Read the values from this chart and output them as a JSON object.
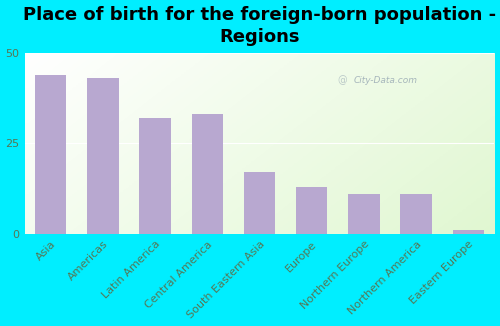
{
  "title": "Place of birth for the foreign-born population -\nRegions",
  "categories": [
    "Asia",
    "Americas",
    "Latin America",
    "Central America",
    "South Eastern Asia",
    "Europe",
    "Northern Europe",
    "Northern America",
    "Eastern Europe"
  ],
  "values": [
    44,
    43,
    32,
    33,
    17,
    13,
    11,
    11,
    1
  ],
  "bar_color": "#b8a8d0",
  "background_outer": "#00eeff",
  "ylim": [
    0,
    50
  ],
  "yticks": [
    0,
    25,
    50
  ],
  "watermark": "City-Data.com",
  "title_fontsize": 13,
  "tick_fontsize": 8,
  "tick_color": "#557755"
}
